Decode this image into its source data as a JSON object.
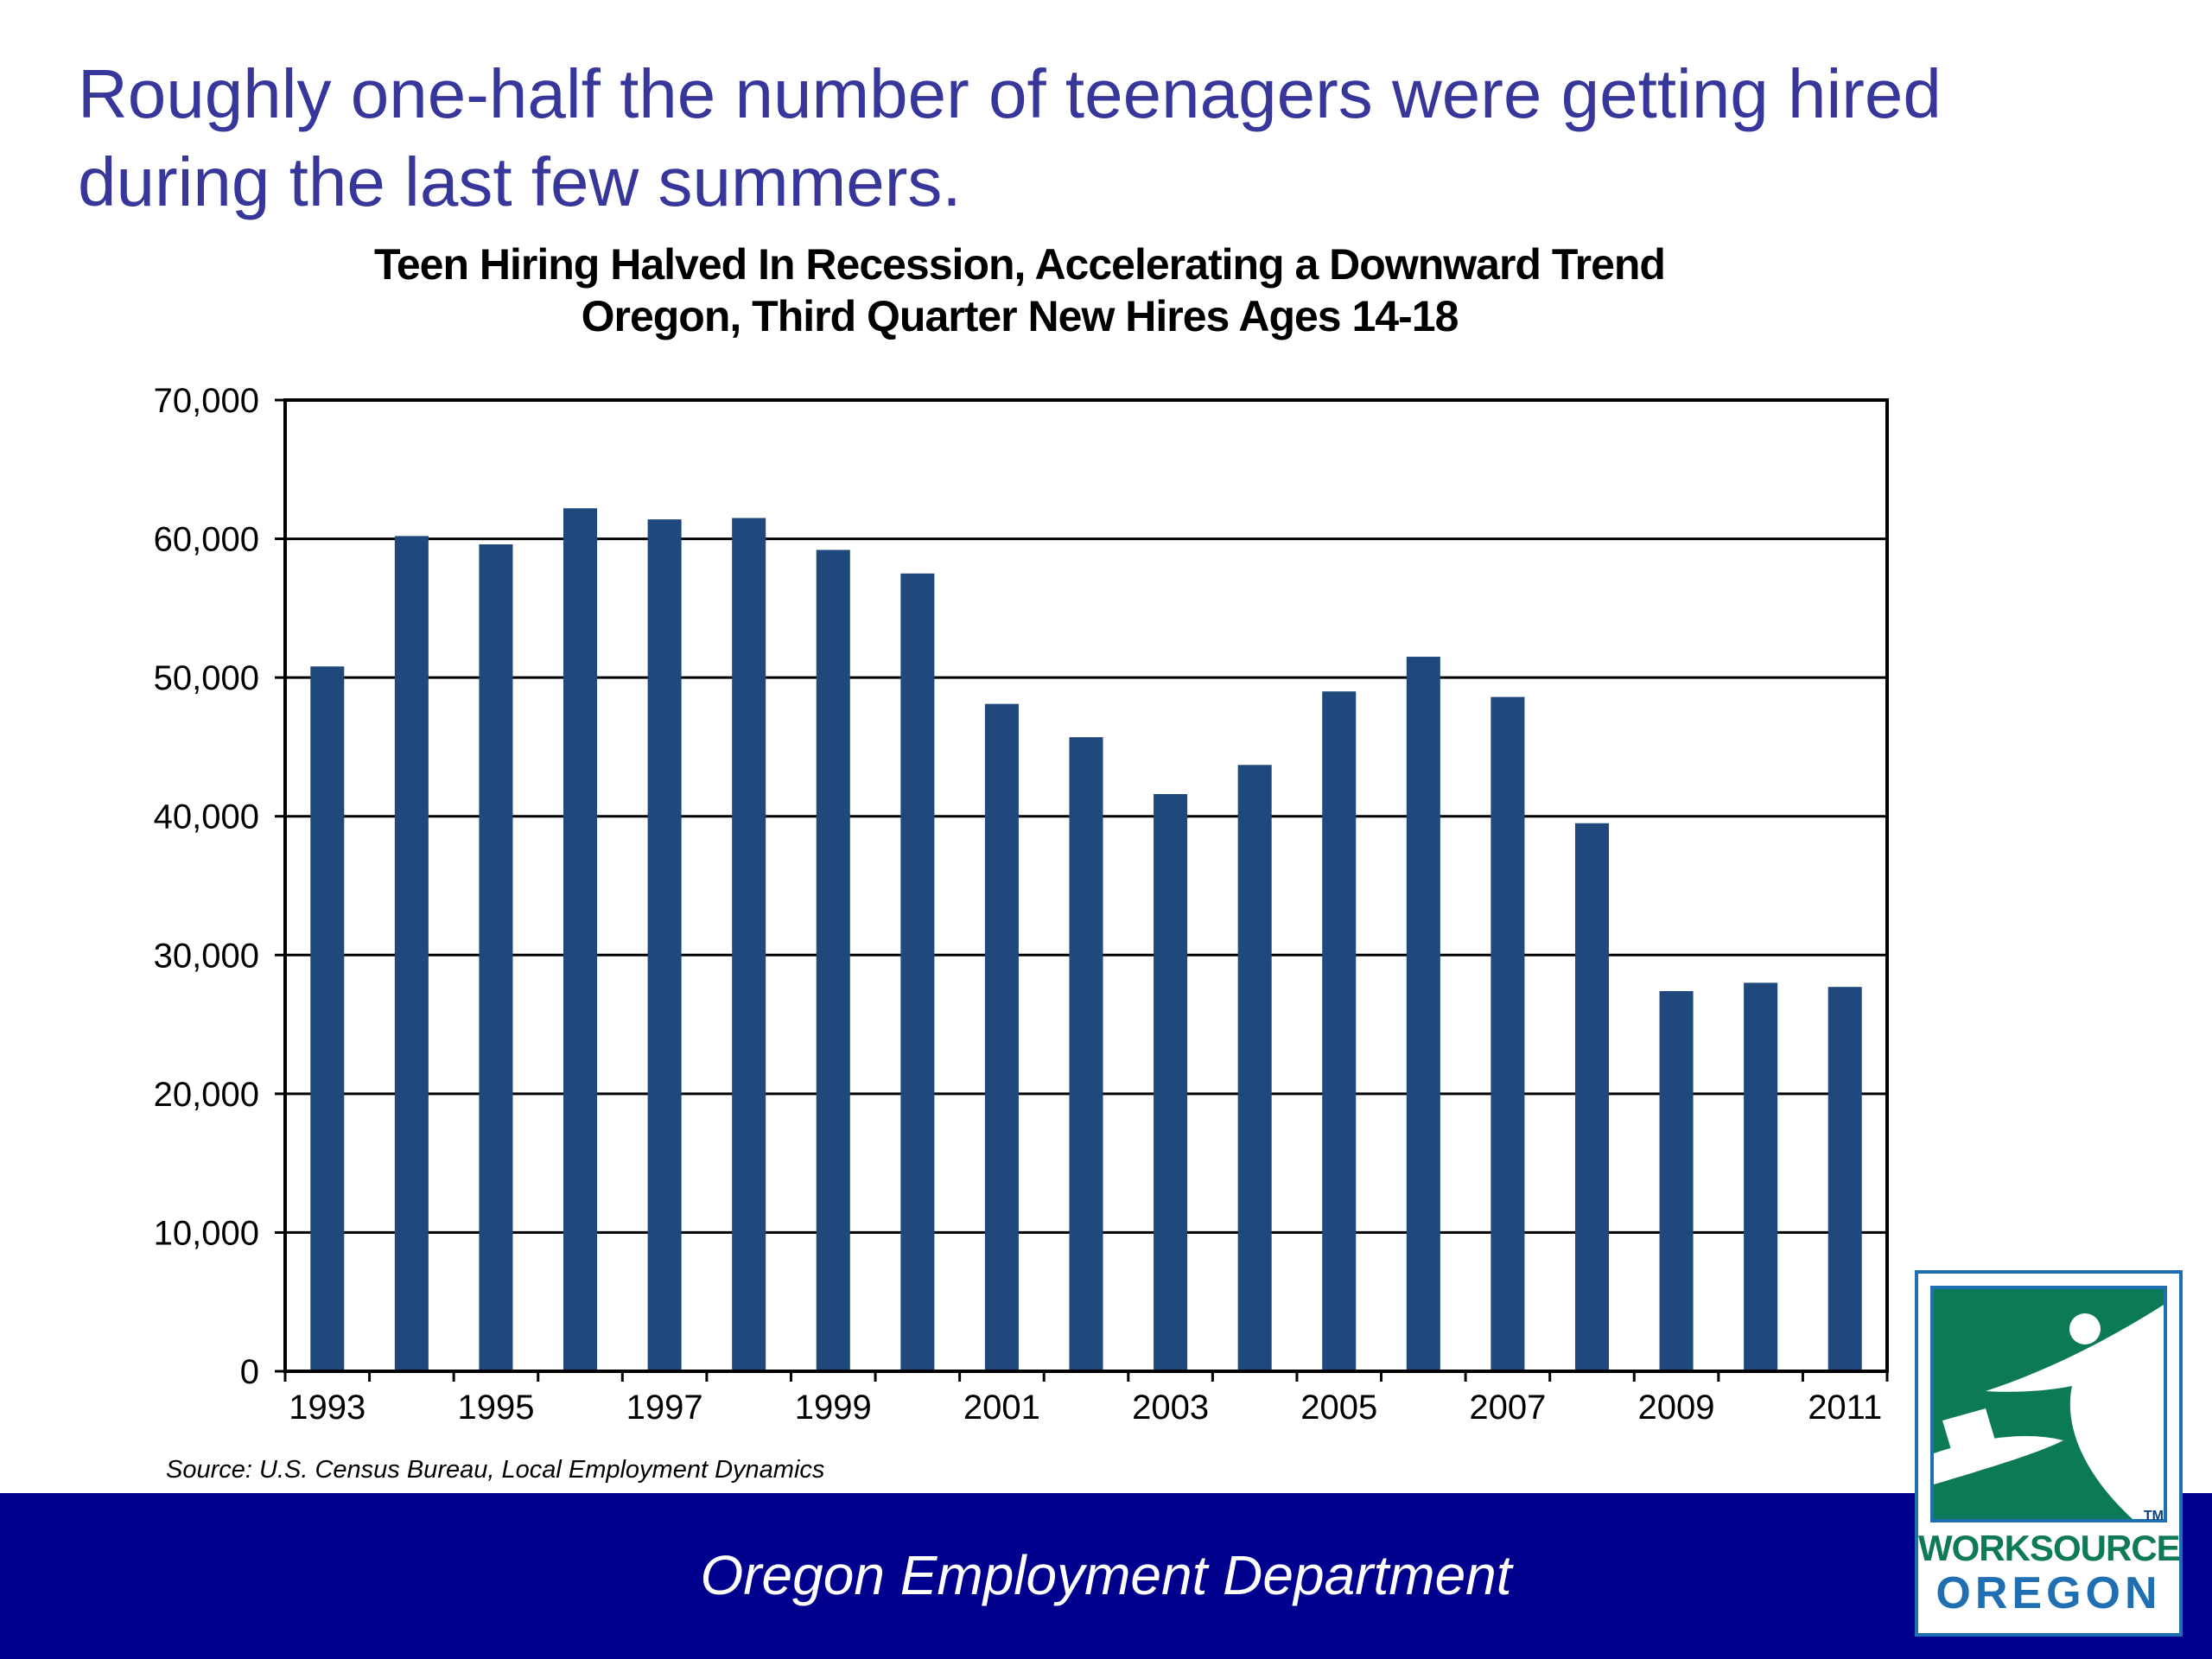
{
  "slide": {
    "headline": "Roughly one-half the number of teenagers were getting hired during the last few summers.",
    "source": "Source: U.S. Census Bureau,  Local Employment Dynamics",
    "footer": "Oregon Employment Department"
  },
  "logo": {
    "line1": "WORKSOURCE",
    "line2": "OREGON",
    "tm": "TM"
  },
  "colors": {
    "headline": "#37369a",
    "bar": "#1f497d",
    "footer_bg": "#00008f",
    "logo_green": "#0d7a57",
    "logo_blue": "#1f6fb2"
  },
  "chart_data": {
    "type": "bar",
    "title": "Teen Hiring Halved In Recession, Accelerating a Downward Trend",
    "subtitle": "Oregon, Third Quarter New Hires Ages 14-18",
    "xlabel": "",
    "ylabel": "",
    "categories": [
      "1993",
      "1994",
      "1995",
      "1996",
      "1997",
      "1998",
      "1999",
      "2000",
      "2001",
      "2002",
      "2003",
      "2004",
      "2005",
      "2006",
      "2007",
      "2008",
      "2009",
      "2010",
      "2011"
    ],
    "x_tick_labels": [
      "1993",
      "",
      "1995",
      "",
      "1997",
      "",
      "1999",
      "",
      "2001",
      "",
      "2003",
      "",
      "2005",
      "",
      "2007",
      "",
      "2009",
      "",
      "2011"
    ],
    "values": [
      50800,
      60200,
      59600,
      62200,
      61400,
      61500,
      59200,
      57500,
      48100,
      45700,
      41600,
      43700,
      49000,
      51500,
      48600,
      39500,
      27400,
      28000,
      27700
    ],
    "ylim": [
      0,
      70000
    ],
    "yticks": [
      0,
      10000,
      20000,
      30000,
      40000,
      50000,
      60000,
      70000
    ],
    "ytick_labels": [
      "0",
      "10,000",
      "20,000",
      "30,000",
      "40,000",
      "50,000",
      "60,000",
      "70,000"
    ],
    "grid": true,
    "legend": "none"
  }
}
